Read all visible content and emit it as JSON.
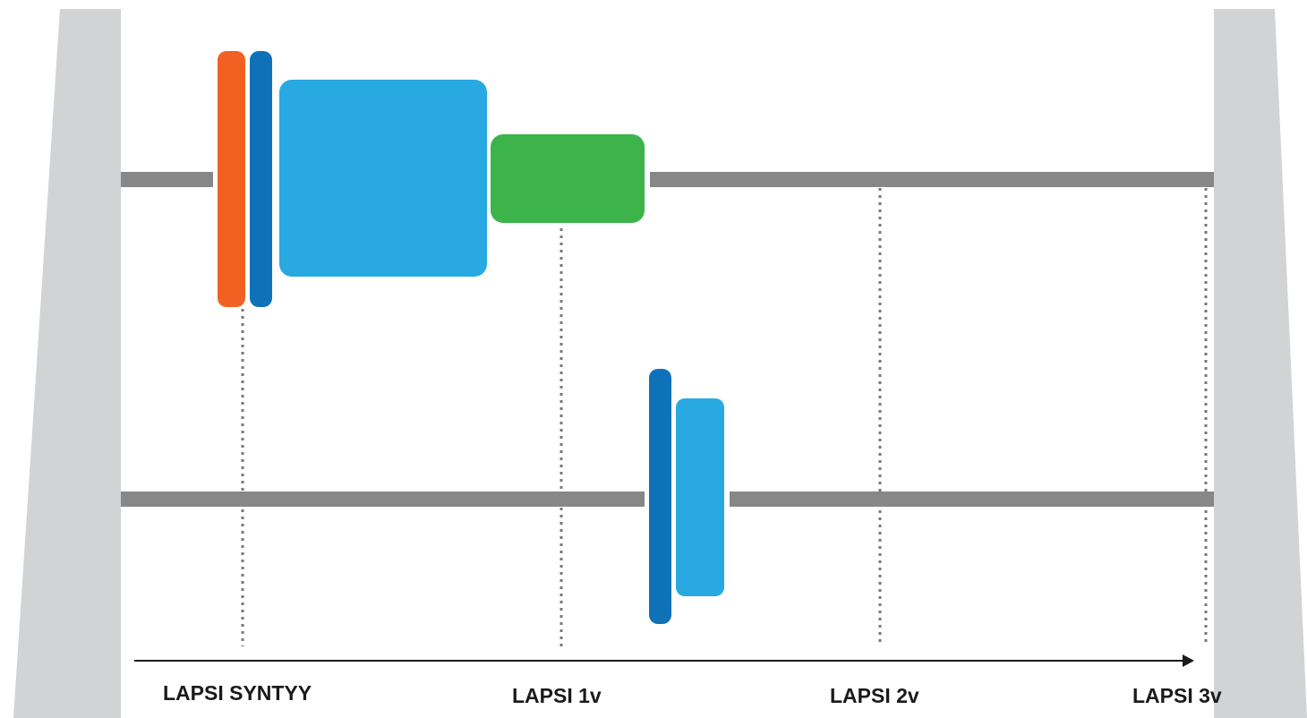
{
  "timeline": {
    "milestones": [
      {
        "label": "LAPSI SYNTYY"
      },
      {
        "label": "LAPSI 1v"
      },
      {
        "label": "LAPSI 2v"
      },
      {
        "label": "LAPSI 3v"
      }
    ]
  },
  "colors": {
    "pillar": "#d2d3d5",
    "track": "#878787",
    "dotted_guide": "#777777",
    "axis": "#1a1a1a",
    "orange": "#f26122",
    "dark_blue": "#0f72b9",
    "light_blue": "#29a9e1",
    "green": "#3cb44b"
  }
}
